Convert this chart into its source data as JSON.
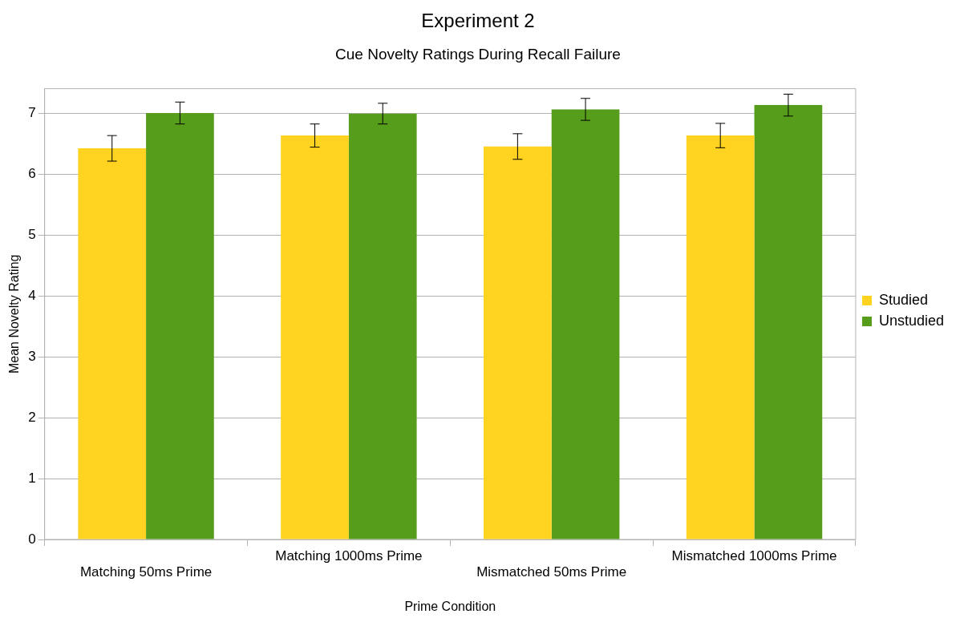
{
  "chart_data": {
    "type": "bar",
    "title": "Experiment 2",
    "subtitle": "Cue Novelty Ratings During Recall Failure",
    "xlabel": "Prime Condition",
    "ylabel": "Mean Novelty Rating",
    "categories": [
      "Matching 50ms Prime",
      "Matching 1000ms Prime",
      "Mismatched 50ms Prime",
      "Mismatched 1000ms Prime"
    ],
    "series": [
      {
        "name": "Studied",
        "color": "#ffd320",
        "values": [
          6.42,
          6.63,
          6.45,
          6.63
        ],
        "errors": [
          0.21,
          0.19,
          0.21,
          0.2
        ]
      },
      {
        "name": "Unstudied",
        "color": "#579d1c",
        "values": [
          7.0,
          6.99,
          7.06,
          7.13
        ],
        "errors": [
          0.18,
          0.17,
          0.18,
          0.18
        ]
      }
    ],
    "ylim": [
      0,
      7.4
    ],
    "yticks": [
      0,
      1,
      2,
      3,
      4,
      5,
      6,
      7
    ],
    "grid": "y",
    "legend": "right"
  }
}
